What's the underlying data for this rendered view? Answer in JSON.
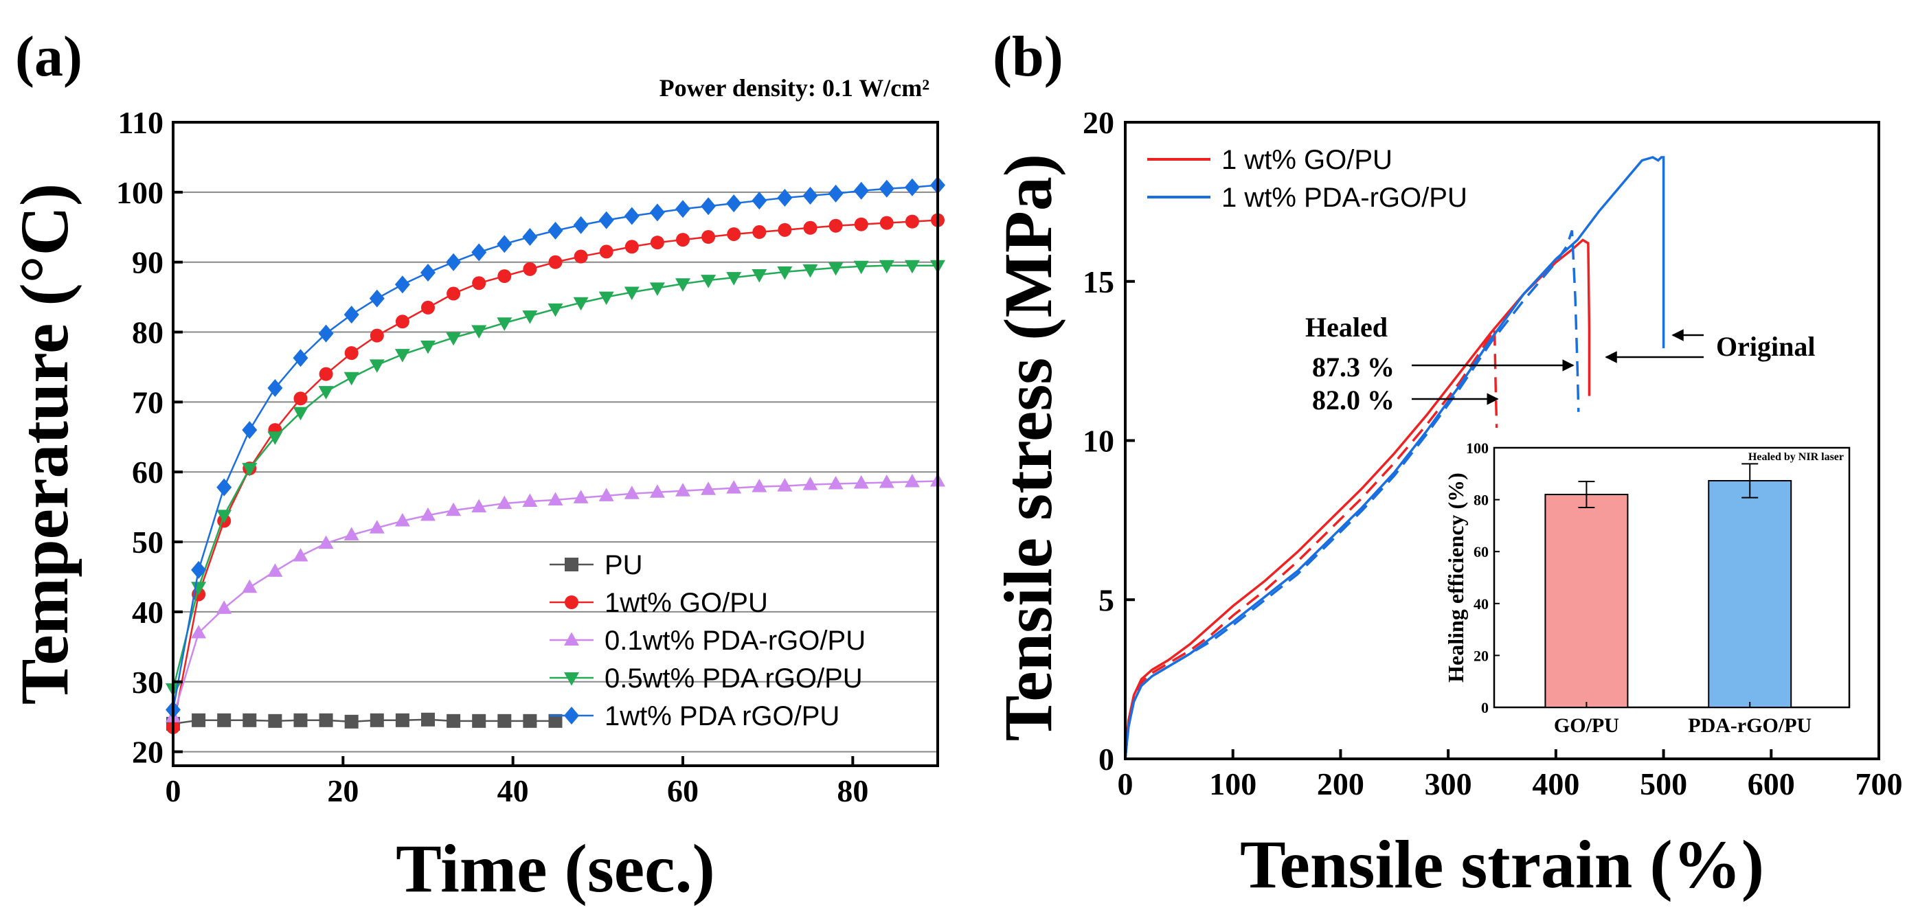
{
  "figure": {
    "panel_a_label": "(a)",
    "panel_b_label": "(b)"
  },
  "colors": {
    "pu": "#555555",
    "go": "#ee2222",
    "pda01": "#cc88ee",
    "pda05": "#22aa55",
    "pda1": "#1a6fe0",
    "bar_go": "#f79a9a",
    "bar_pda": "#78b6ee"
  },
  "chart_data": [
    {
      "id": "a",
      "type": "line",
      "title": "",
      "annotation": "Power density: 0.1 W/cm²",
      "xlabel": "Time (sec.)",
      "ylabel": "Temperature (°C)",
      "xlim": [
        0,
        90
      ],
      "ylim": [
        18,
        110
      ],
      "xticks": [
        0,
        20,
        40,
        60,
        80
      ],
      "yticks": [
        20,
        30,
        40,
        50,
        60,
        70,
        80,
        90,
        100,
        110
      ],
      "grid": "horizontal",
      "legend_position": "bottom-right",
      "series": [
        {
          "name": "PU",
          "marker": "square",
          "color_key": "pu",
          "x": [
            0,
            3,
            6,
            9,
            12,
            15,
            18,
            21,
            24,
            27,
            30,
            33,
            36,
            39,
            42,
            45
          ],
          "y": [
            24,
            24.5,
            24.5,
            24.5,
            24.4,
            24.5,
            24.5,
            24.3,
            24.5,
            24.5,
            24.6,
            24.4,
            24.4,
            24.4,
            24.4,
            24.4
          ]
        },
        {
          "name": "1wt% GO/PU",
          "marker": "circle",
          "color_key": "go",
          "x": [
            0,
            3,
            6,
            9,
            12,
            15,
            18,
            21,
            24,
            27,
            30,
            33,
            36,
            39,
            42,
            45,
            48,
            51,
            54,
            57,
            60,
            63,
            66,
            69,
            72,
            75,
            78,
            81,
            84,
            87,
            90
          ],
          "y": [
            23.5,
            42.5,
            53,
            60.5,
            66,
            70.5,
            74,
            77,
            79.5,
            81.5,
            83.5,
            85.5,
            87,
            88,
            89,
            90,
            90.8,
            91.5,
            92.2,
            92.8,
            93.2,
            93.6,
            94,
            94.3,
            94.6,
            94.9,
            95.2,
            95.4,
            95.6,
            95.8,
            96
          ]
        },
        {
          "name": "0.1wt% PDA-rGO/PU",
          "marker": "triangle-up",
          "color_key": "pda01",
          "x": [
            0,
            3,
            6,
            9,
            12,
            15,
            18,
            21,
            24,
            27,
            30,
            33,
            36,
            39,
            42,
            45,
            48,
            51,
            54,
            57,
            60,
            63,
            66,
            69,
            72,
            75,
            78,
            81,
            84,
            87,
            90
          ],
          "y": [
            25,
            37,
            40.5,
            43.5,
            45.8,
            48,
            49.8,
            51,
            52,
            53,
            53.8,
            54.5,
            55,
            55.5,
            55.8,
            56,
            56.3,
            56.6,
            56.9,
            57.1,
            57.3,
            57.5,
            57.7,
            57.9,
            58,
            58.2,
            58.3,
            58.4,
            58.5,
            58.6,
            58.7
          ]
        },
        {
          "name": "0.5wt% PDA rGO/PU",
          "marker": "triangle-down",
          "color_key": "pda05",
          "x": [
            0,
            3,
            6,
            9,
            12,
            15,
            18,
            21,
            24,
            27,
            30,
            33,
            36,
            39,
            42,
            45,
            48,
            51,
            54,
            57,
            60,
            63,
            66,
            69,
            72,
            75,
            78,
            81,
            84,
            87,
            90
          ],
          "y": [
            29,
            43.5,
            53.8,
            60.5,
            65,
            68.5,
            71.5,
            73.5,
            75.3,
            76.8,
            78,
            79.2,
            80.2,
            81.3,
            82.3,
            83.3,
            84.2,
            85,
            85.7,
            86.3,
            86.9,
            87.4,
            87.8,
            88.2,
            88.6,
            88.9,
            89.2,
            89.4,
            89.5,
            89.5,
            89.5
          ]
        },
        {
          "name": "1wt% PDA rGO/PU",
          "marker": "diamond",
          "color_key": "pda1",
          "x": [
            0,
            3,
            6,
            9,
            12,
            15,
            18,
            21,
            24,
            27,
            30,
            33,
            36,
            39,
            42,
            45,
            48,
            51,
            54,
            57,
            60,
            63,
            66,
            69,
            72,
            75,
            78,
            81,
            84,
            87,
            90
          ],
          "y": [
            26,
            46,
            57.8,
            66,
            72,
            76.3,
            79.8,
            82.5,
            84.8,
            86.8,
            88.5,
            90,
            91.4,
            92.6,
            93.6,
            94.5,
            95.3,
            96,
            96.6,
            97.1,
            97.6,
            98,
            98.4,
            98.8,
            99.2,
            99.5,
            99.8,
            100.2,
            100.5,
            100.7,
            101
          ]
        }
      ]
    },
    {
      "id": "b",
      "type": "line",
      "title": "",
      "xlabel": "Tensile strain (%)",
      "ylabel": "Tensile stress (MPa)",
      "xlim": [
        0,
        700
      ],
      "ylim": [
        0,
        20
      ],
      "xticks": [
        0,
        100,
        200,
        300,
        400,
        500,
        600,
        700
      ],
      "yticks": [
        0,
        5,
        10,
        15,
        20
      ],
      "grid": "off",
      "legend_position": "top-left",
      "series": [
        {
          "name": "1 wt% GO/PU",
          "color_key": "go",
          "style": "solid",
          "x": [
            0,
            3,
            8,
            15,
            25,
            40,
            60,
            80,
            100,
            130,
            160,
            190,
            220,
            250,
            280,
            310,
            340,
            370,
            400,
            415,
            425,
            430,
            431,
            431
          ],
          "y": [
            0,
            1.2,
            2.0,
            2.5,
            2.8,
            3.1,
            3.6,
            4.2,
            4.8,
            5.6,
            6.5,
            7.5,
            8.5,
            9.6,
            10.8,
            12.1,
            13.4,
            14.6,
            15.6,
            16.0,
            16.3,
            16.2,
            13.5,
            11.4
          ]
        },
        {
          "name": "1 wt% GO/PU healed",
          "color_key": "go",
          "style": "dashed",
          "x": [
            0,
            3,
            8,
            15,
            25,
            40,
            60,
            80,
            100,
            130,
            160,
            190,
            220,
            250,
            280,
            310,
            330,
            343,
            344,
            345
          ],
          "y": [
            0,
            1.1,
            1.9,
            2.4,
            2.7,
            3.0,
            3.4,
            3.9,
            4.5,
            5.3,
            6.2,
            7.2,
            8.2,
            9.3,
            10.5,
            11.8,
            12.8,
            13.5,
            11.8,
            10.4
          ]
        },
        {
          "name": "1 wt% PDA-rGO/PU",
          "color_key": "pda1",
          "style": "solid",
          "x": [
            0,
            3,
            8,
            15,
            25,
            40,
            60,
            80,
            100,
            130,
            160,
            190,
            220,
            250,
            280,
            310,
            340,
            370,
            400,
            420,
            440,
            460,
            480,
            490,
            495,
            498,
            500,
            500
          ],
          "y": [
            0,
            1.0,
            1.8,
            2.3,
            2.6,
            2.9,
            3.3,
            3.8,
            4.3,
            5.1,
            5.9,
            6.9,
            7.9,
            9.0,
            10.3,
            11.7,
            13.2,
            14.6,
            15.7,
            16.3,
            17.2,
            18.0,
            18.8,
            18.9,
            18.8,
            18.9,
            18.9,
            12.9
          ]
        },
        {
          "name": "1 wt% PDA-rGO/PU healed",
          "color_key": "pda1",
          "style": "dashed",
          "x": [
            0,
            3,
            8,
            15,
            25,
            40,
            60,
            80,
            100,
            130,
            160,
            190,
            220,
            250,
            280,
            310,
            340,
            370,
            400,
            410,
            415,
            418,
            420,
            421
          ],
          "y": [
            0,
            1.0,
            1.8,
            2.3,
            2.6,
            2.9,
            3.3,
            3.7,
            4.2,
            5.0,
            5.8,
            6.8,
            7.8,
            8.9,
            10.2,
            11.6,
            13.1,
            14.4,
            15.6,
            16.1,
            16.6,
            14.5,
            12.3,
            10.9
          ]
        }
      ],
      "annotations": {
        "healed": "Healed",
        "pct_pda": "87.3 %",
        "pct_go": "82.0 %",
        "original": "Original"
      },
      "inset": {
        "type": "bar",
        "title": "Healed by NIR laser",
        "ylabel": "Healing efficiency (%)",
        "categories": [
          "GO/PU",
          "PDA-rGO/PU"
        ],
        "values": [
          82.0,
          87.3
        ],
        "errors": [
          5.0,
          6.5
        ],
        "ylim": [
          0,
          100
        ],
        "yticks": [
          0,
          20,
          40,
          60,
          80,
          100
        ]
      }
    }
  ]
}
